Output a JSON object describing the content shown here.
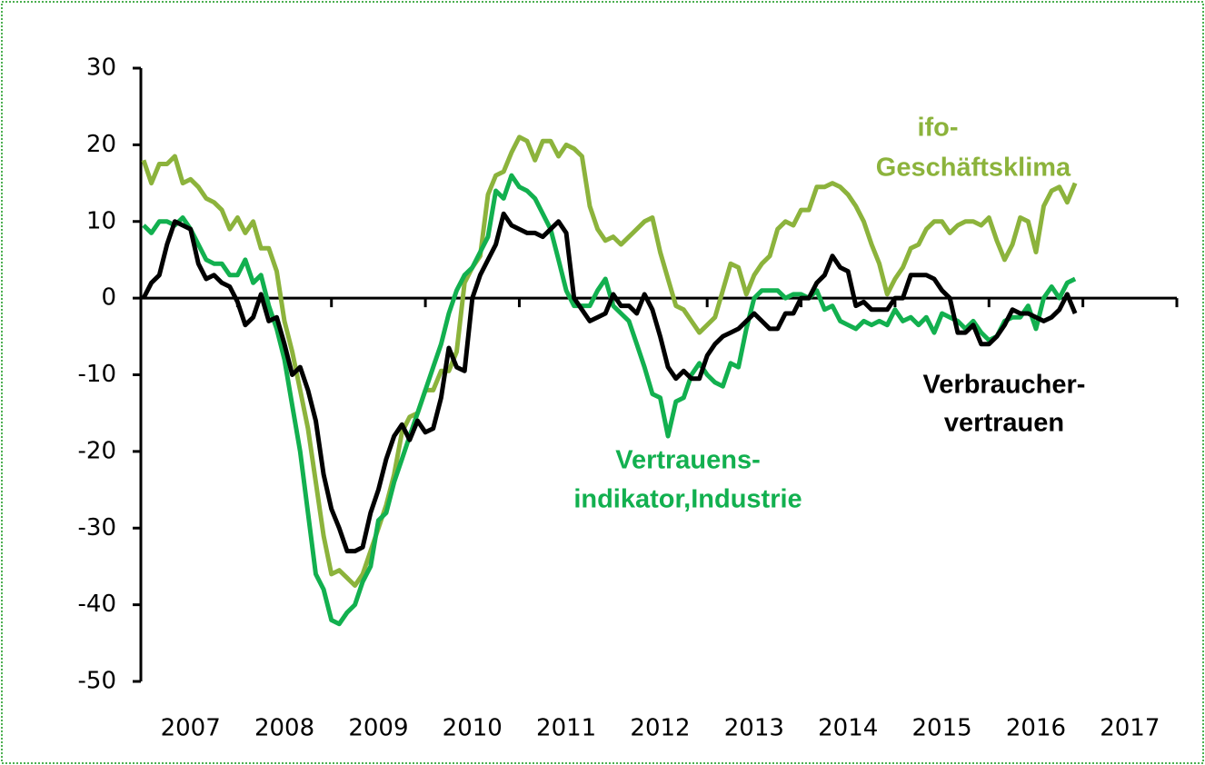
{
  "chart_data": {
    "type": "line",
    "categories": [
      "2007",
      "2008",
      "2009",
      "2010",
      "2011",
      "2012",
      "2013",
      "2014",
      "2015",
      "2016",
      "2017"
    ],
    "x": [
      2007.0,
      2007.083,
      2007.167,
      2007.25,
      2007.333,
      2007.417,
      2007.5,
      2007.583,
      2007.667,
      2007.75,
      2007.833,
      2007.917,
      2008.0,
      2008.083,
      2008.167,
      2008.25,
      2008.333,
      2008.417,
      2008.5,
      2008.583,
      2008.667,
      2008.75,
      2008.833,
      2008.917,
      2009.0,
      2009.083,
      2009.167,
      2009.25,
      2009.333,
      2009.417,
      2009.5,
      2009.583,
      2009.667,
      2009.75,
      2009.833,
      2009.917,
      2010.0,
      2010.083,
      2010.167,
      2010.25,
      2010.333,
      2010.417,
      2010.5,
      2010.583,
      2010.667,
      2010.75,
      2010.833,
      2010.917,
      2011.0,
      2011.083,
      2011.167,
      2011.25,
      2011.333,
      2011.417,
      2011.5,
      2011.583,
      2011.667,
      2011.75,
      2011.833,
      2011.917,
      2012.0,
      2012.083,
      2012.167,
      2012.25,
      2012.333,
      2012.417,
      2012.5,
      2012.583,
      2012.667,
      2012.75,
      2012.833,
      2012.917,
      2013.0,
      2013.083,
      2013.167,
      2013.25,
      2013.333,
      2013.417,
      2013.5,
      2013.583,
      2013.667,
      2013.75,
      2013.833,
      2013.917,
      2014.0,
      2014.083,
      2014.167,
      2014.25,
      2014.333,
      2014.417,
      2014.5,
      2014.583,
      2014.667,
      2014.75,
      2014.833,
      2014.917,
      2015.0,
      2015.083,
      2015.167,
      2015.25,
      2015.333,
      2015.417,
      2015.5,
      2015.583,
      2015.667,
      2015.75,
      2015.833,
      2015.917,
      2016.0,
      2016.083,
      2016.167,
      2016.25,
      2016.333,
      2016.417,
      2016.5,
      2016.583,
      2016.667,
      2016.75,
      2016.833,
      2016.917
    ],
    "series": [
      {
        "name": "ifo-Geschäftsklima",
        "color": "#8cb33c",
        "values": [
          18,
          15,
          17.5,
          17.5,
          18.5,
          15,
          15.5,
          14.5,
          13,
          12.5,
          11.5,
          9,
          10.5,
          8.5,
          10,
          6.5,
          6.5,
          3.5,
          -3,
          -7,
          -12,
          -17,
          -24,
          -31,
          -36,
          -35.5,
          -36.5,
          -37.5,
          -36,
          -33,
          -30,
          -27,
          -23,
          -17.5,
          -15.5,
          -15,
          -12,
          -12,
          -9.5,
          -9.5,
          -7,
          2,
          4,
          5.5,
          13.5,
          16,
          16.5,
          19,
          21,
          20.5,
          18,
          20.5,
          20.5,
          18.5,
          20,
          19.5,
          18.5,
          12,
          9,
          7.5,
          8,
          7,
          8,
          9,
          10,
          10.5,
          6,
          2.5,
          -1,
          -1.5,
          -3,
          -4.5,
          -3.5,
          -2.5,
          1,
          4.5,
          4,
          0.5,
          3,
          4.5,
          5.5,
          9,
          10,
          9.5,
          11.5,
          11.5,
          14.5,
          14.5,
          15,
          14.5,
          13.5,
          12,
          10,
          7,
          4.5,
          0.5,
          2.5,
          4,
          6.5,
          7,
          9,
          10,
          10,
          8.5,
          9.5,
          10,
          10,
          9.5,
          10.5,
          7.5,
          5,
          7,
          10.5,
          10,
          6,
          12,
          14,
          14.5,
          12.5,
          15
        ]
      },
      {
        "name": "Vertrauensindikator, Industrie",
        "color": "#12b04f",
        "values": [
          9.5,
          8.5,
          10,
          10,
          9.5,
          10.5,
          9,
          7,
          5,
          4.5,
          4.5,
          3,
          3,
          5,
          2,
          3,
          -1,
          -4,
          -8,
          -14,
          -20,
          -28,
          -36,
          -38,
          -42,
          -42.5,
          -41,
          -40,
          -37,
          -35,
          -29,
          -28,
          -24,
          -21,
          -18,
          -15,
          -12,
          -9,
          -6,
          -2,
          1,
          3,
          4,
          6,
          8,
          14,
          13,
          16,
          14.5,
          14,
          13,
          11,
          9,
          5,
          1,
          -1,
          -1,
          -1,
          1,
          2.5,
          -1,
          -2,
          -3,
          -6,
          -9,
          -12.5,
          -13,
          -18,
          -13.5,
          -13,
          -10,
          -8.5,
          -10,
          -11,
          -11.5,
          -8.5,
          -9,
          -4,
          0,
          1,
          1,
          1,
          0,
          0.5,
          0.5,
          0,
          1,
          -1.5,
          -1,
          -3,
          -3.5,
          -4,
          -3,
          -3.5,
          -3,
          -3.5,
          -1.5,
          -3,
          -2.5,
          -3.5,
          -2.5,
          -4.5,
          -2,
          -2.5,
          -3,
          -4,
          -3,
          -4.5,
          -5.5,
          -5,
          -3,
          -2.5,
          -2.5,
          -1,
          -4,
          0,
          1.5,
          0,
          2,
          2.5
        ]
      },
      {
        "name": "Verbrauchervertrauen",
        "color": "#000000",
        "values": [
          0,
          2,
          3,
          7,
          10,
          9.5,
          9,
          4.5,
          2.5,
          3,
          2,
          1.5,
          -0.5,
          -3.5,
          -2.5,
          0.5,
          -3,
          -2.5,
          -6,
          -10,
          -9,
          -12,
          -16,
          -23,
          -27.5,
          -30,
          -33,
          -33,
          -32.5,
          -28,
          -25,
          -21,
          -18,
          -16.5,
          -18.5,
          -16,
          -17.5,
          -17,
          -13,
          -6.5,
          -9,
          -9.5,
          0,
          3,
          5,
          7,
          11,
          9.5,
          9,
          8.5,
          8.5,
          8,
          9,
          10,
          8.5,
          0,
          -1.5,
          -3,
          -2.5,
          -2,
          0.5,
          -1,
          -1,
          -2,
          0.5,
          -1.5,
          -5,
          -9,
          -10.5,
          -9.5,
          -10.5,
          -10.5,
          -7.5,
          -6,
          -5,
          -4.5,
          -4,
          -3,
          -2,
          -3,
          -4,
          -4,
          -2,
          -2,
          0,
          0,
          2,
          3,
          5.5,
          4,
          3.5,
          -1,
          -0.5,
          -1.5,
          -1.5,
          -1.5,
          0,
          0,
          3,
          3,
          3,
          2.5,
          1,
          0,
          -4.5,
          -4.5,
          -3.5,
          -6,
          -6,
          -5,
          -3.5,
          -1.5,
          -2,
          -2,
          -2.5,
          -3,
          -2.5,
          -1.5,
          0.5,
          -2
        ]
      }
    ],
    "annotations": [
      {
        "text": "ifo-",
        "series": 0
      },
      {
        "text": "Geschäftsklima",
        "series": 0
      },
      {
        "text": "Vertrauens-",
        "series": 1
      },
      {
        "text": "indikator,Industrie",
        "series": 1
      },
      {
        "text": "Verbraucher-",
        "series": 2
      },
      {
        "text": "vertrauen",
        "series": 2
      }
    ],
    "xlim": [
      2007,
      2018
    ],
    "ylim": [
      -50,
      30
    ],
    "yticks": [
      30,
      20,
      10,
      0,
      -10,
      -20,
      -30,
      -40,
      -50
    ]
  }
}
